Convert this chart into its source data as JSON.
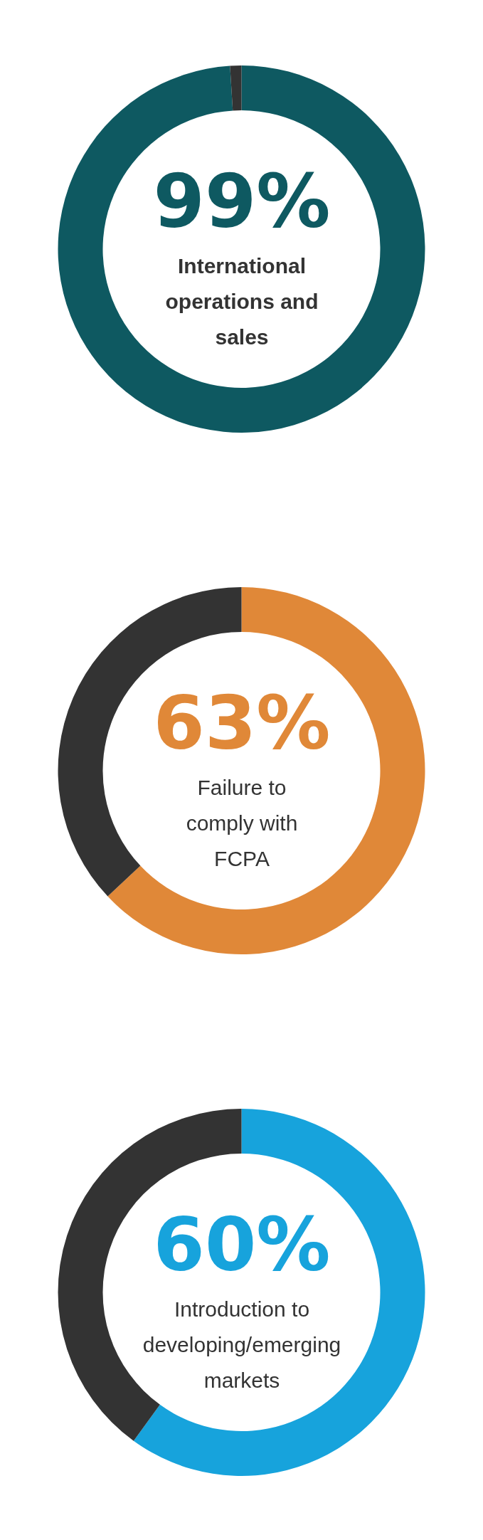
{
  "chart_data": [
    {
      "type": "donut",
      "categories": [
        "International operations and sales",
        null
      ],
      "values": [
        99,
        1
      ],
      "colors": [
        "#0e5961",
        "#333333"
      ],
      "value_labels": [
        "99%",
        null
      ]
    },
    {
      "type": "donut",
      "categories": [
        "Failure to comply with FCPA",
        null
      ],
      "values": [
        63,
        37
      ],
      "colors": [
        "#e08838",
        "#333333"
      ],
      "value_labels": [
        "63%",
        null
      ]
    },
    {
      "type": "donut",
      "categories": [
        "Introduction to developing/emerging markets",
        null
      ],
      "values": [
        60,
        40
      ],
      "colors": [
        "#17a3dc",
        "#333333"
      ],
      "value_labels": [
        "60%",
        null
      ]
    }
  ]
}
